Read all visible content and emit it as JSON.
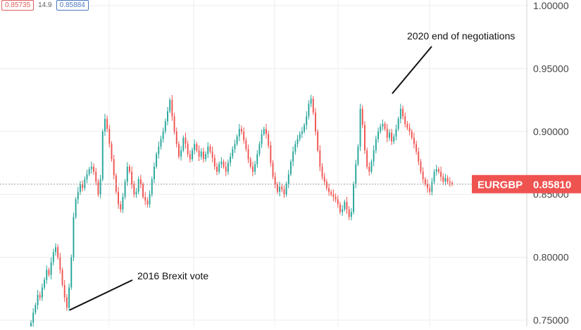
{
  "toolbar": {
    "bid_price": "0.85735",
    "spread": "14.9",
    "ask_price": "0.85884"
  },
  "colors": {
    "up": "#26a69a",
    "down": "#ef5350",
    "grid": "#ececec",
    "axis_text": "#444444",
    "price_label_bg": "#ef5350"
  },
  "chart_data": {
    "type": "candlestick",
    "ylim": [
      0.75,
      1.0
    ],
    "y_ticks": [
      "0.75000",
      "0.80000",
      "0.85000",
      "0.90000",
      "0.95000",
      "1.00000"
    ],
    "y_tick_values": [
      0.75,
      0.8,
      0.85,
      0.9,
      0.95,
      1.0
    ],
    "symbol": "EURGBP",
    "last_price": 0.8581,
    "last_price_label": "0.85810",
    "closes": [
      0.748,
      0.756,
      0.762,
      0.77,
      0.768,
      0.776,
      0.782,
      0.79,
      0.786,
      0.796,
      0.804,
      0.808,
      0.8,
      0.79,
      0.778,
      0.768,
      0.76,
      0.776,
      0.8,
      0.832,
      0.846,
      0.852,
      0.858,
      0.855,
      0.862,
      0.866,
      0.87,
      0.872,
      0.868,
      0.86,
      0.85,
      0.862,
      0.9,
      0.91,
      0.902,
      0.89,
      0.878,
      0.865,
      0.852,
      0.842,
      0.838,
      0.848,
      0.86,
      0.872,
      0.868,
      0.858,
      0.85,
      0.852,
      0.862,
      0.858,
      0.848,
      0.845,
      0.842,
      0.85,
      0.862,
      0.872,
      0.882,
      0.888,
      0.894,
      0.9,
      0.908,
      0.916,
      0.925,
      0.912,
      0.9,
      0.89,
      0.88,
      0.885,
      0.895,
      0.89,
      0.882,
      0.878,
      0.885,
      0.89,
      0.885,
      0.88,
      0.884,
      0.878,
      0.882,
      0.888,
      0.884,
      0.879,
      0.872,
      0.868,
      0.874,
      0.876,
      0.872,
      0.868,
      0.875,
      0.88,
      0.886,
      0.89,
      0.896,
      0.902,
      0.9,
      0.893,
      0.886,
      0.878,
      0.872,
      0.868,
      0.874,
      0.882,
      0.89,
      0.898,
      0.902,
      0.898,
      0.889,
      0.875,
      0.864,
      0.858,
      0.852,
      0.856,
      0.854,
      0.85,
      0.858,
      0.866,
      0.876,
      0.884,
      0.89,
      0.894,
      0.898,
      0.9,
      0.905,
      0.912,
      0.922,
      0.926,
      0.915,
      0.9,
      0.885,
      0.872,
      0.864,
      0.86,
      0.855,
      0.852,
      0.85,
      0.848,
      0.846,
      0.842,
      0.836,
      0.838,
      0.844,
      0.838,
      0.832,
      0.836,
      0.858,
      0.874,
      0.888,
      0.918,
      0.905,
      0.885,
      0.872,
      0.868,
      0.876,
      0.885,
      0.894,
      0.9,
      0.904,
      0.906,
      0.902,
      0.895,
      0.899,
      0.892,
      0.896,
      0.902,
      0.91,
      0.918,
      0.912,
      0.906,
      0.903,
      0.9,
      0.895,
      0.89,
      0.884,
      0.876,
      0.868,
      0.862,
      0.858,
      0.855,
      0.852,
      0.86,
      0.868,
      0.87,
      0.868,
      0.864,
      0.86,
      0.863,
      0.86,
      0.859,
      0.8581
    ],
    "annotations": [
      {
        "text": "2016 Brexit vote",
        "at_index": 16,
        "price": 0.758
      },
      {
        "text": "2020 end of negotiations",
        "at_index": 160,
        "price": 0.92
      }
    ]
  }
}
